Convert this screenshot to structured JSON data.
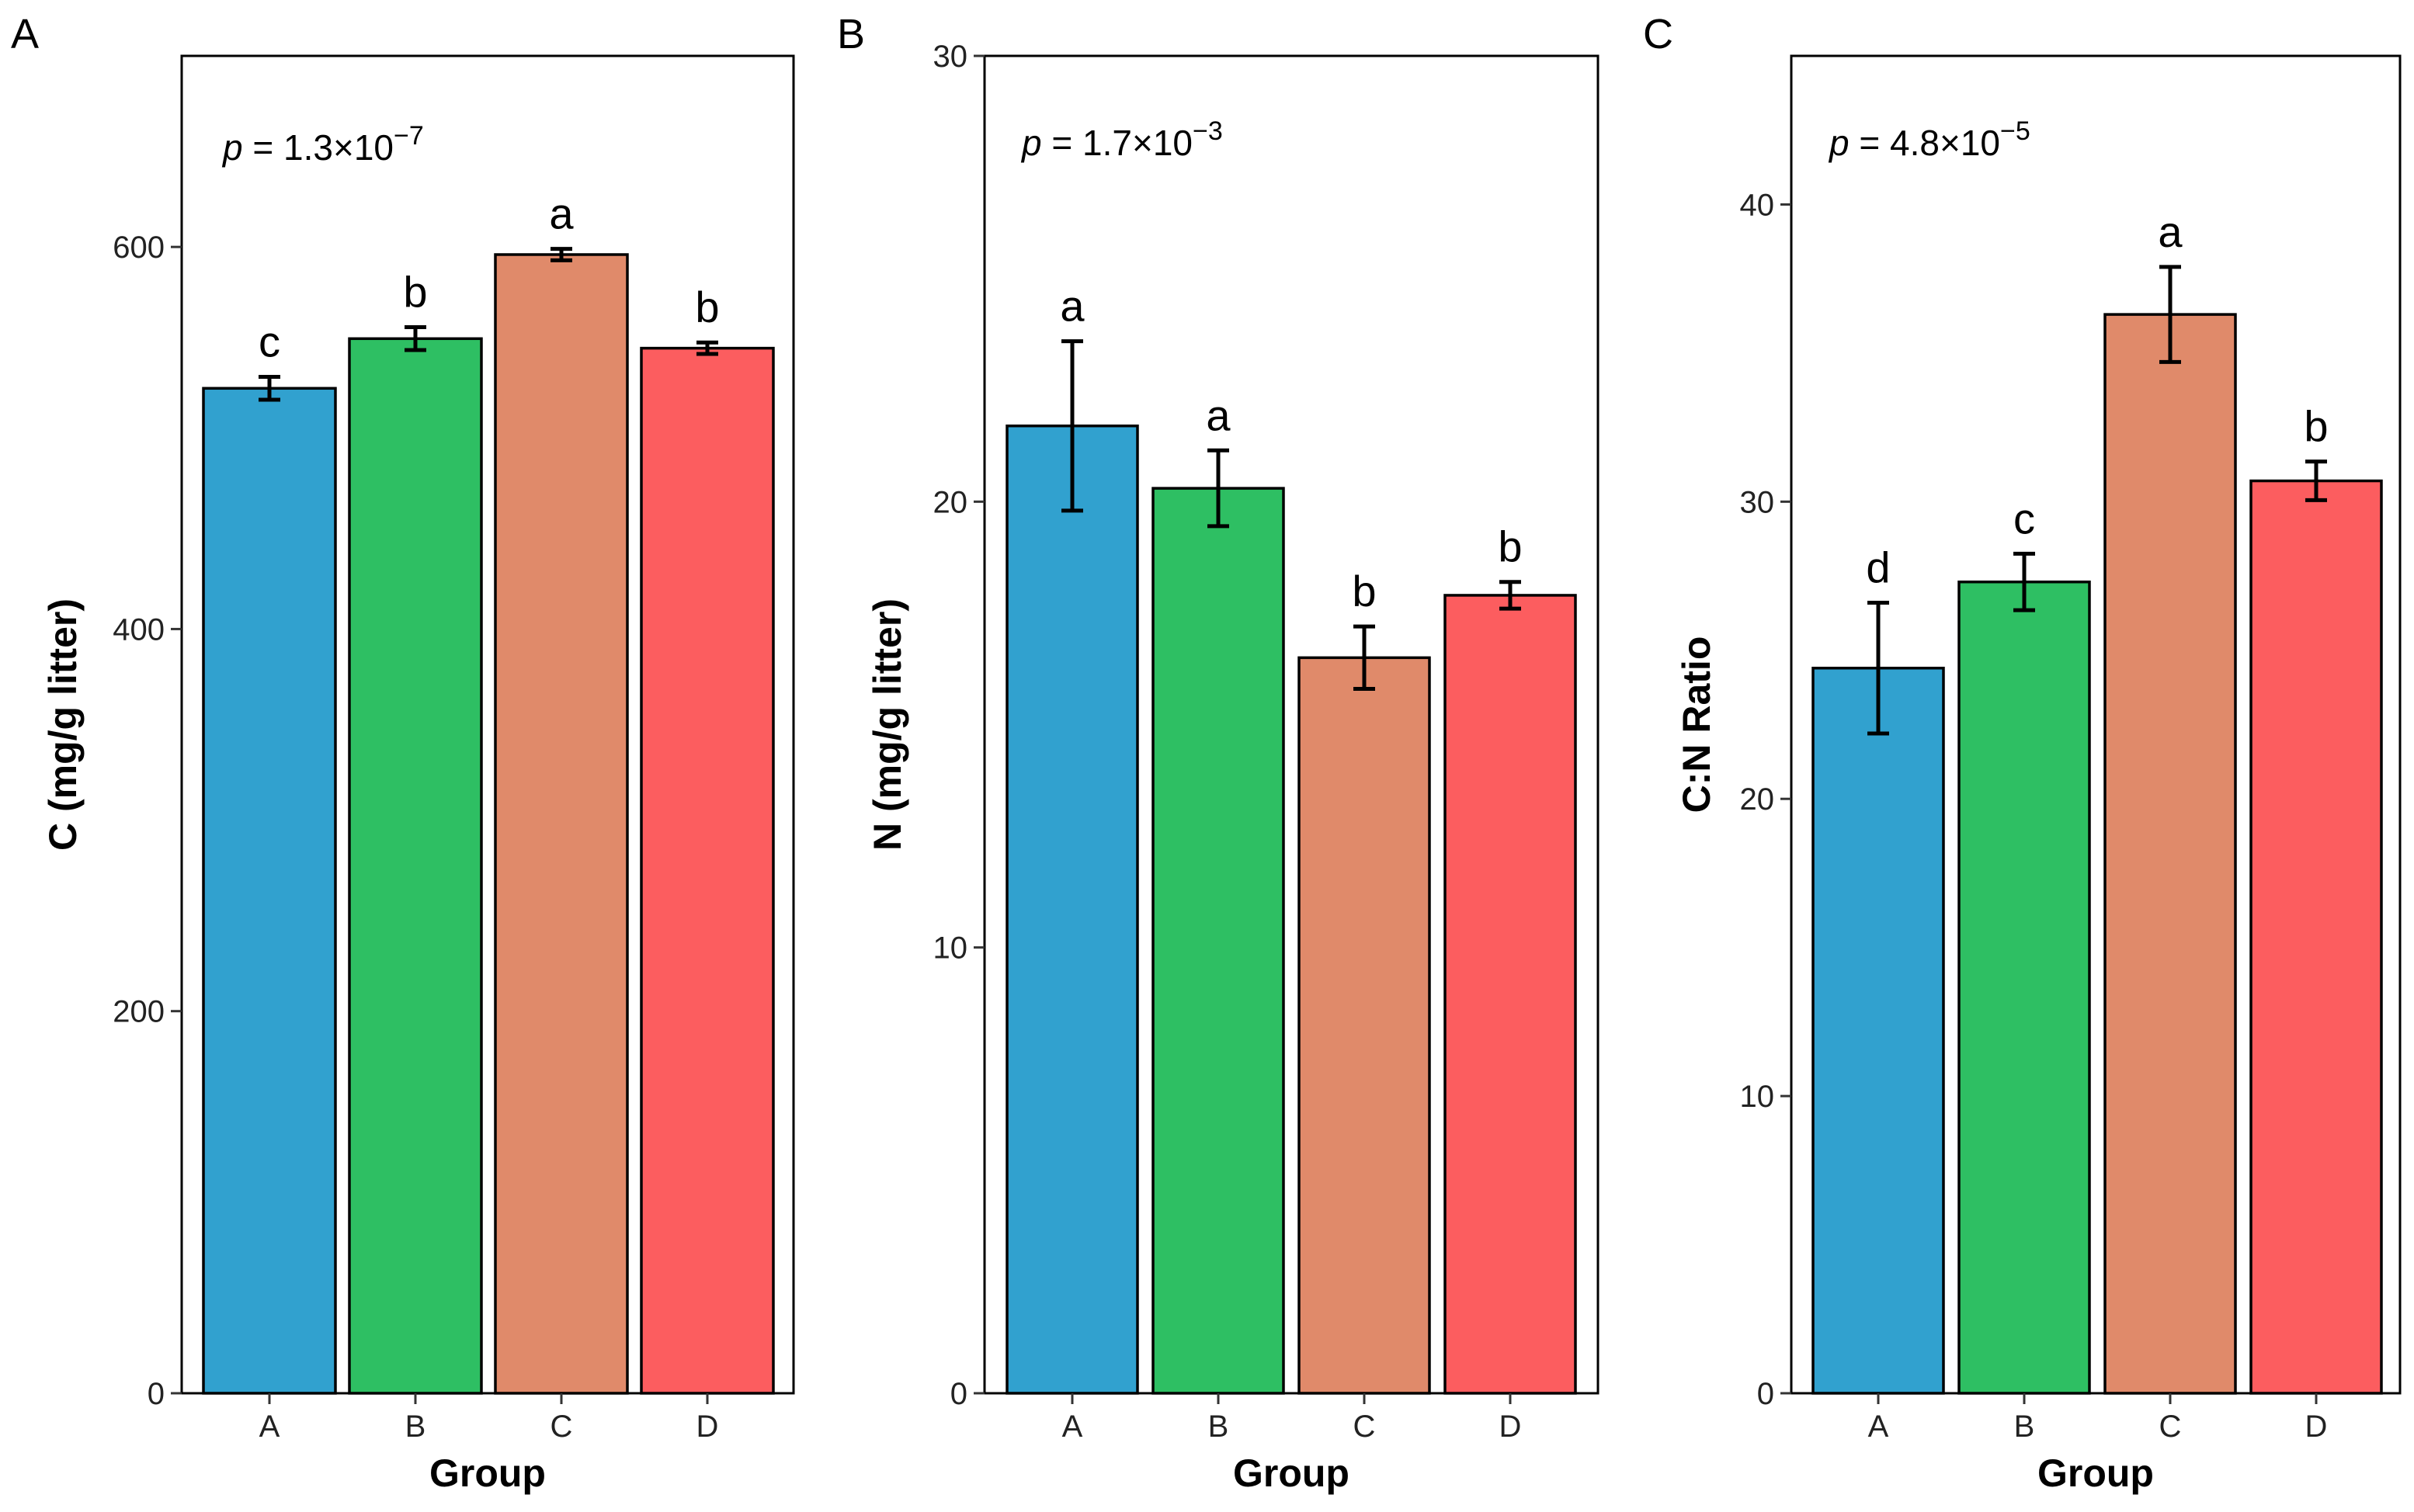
{
  "chart_data": [
    {
      "panel": "A",
      "type": "bar",
      "categories": [
        "A",
        "B",
        "C",
        "D"
      ],
      "values": [
        526,
        552,
        596,
        547
      ],
      "errors": [
        6,
        6,
        3,
        3
      ],
      "significance": [
        "c",
        "b",
        "a",
        "b"
      ],
      "p_value": {
        "prefix": "p",
        "text": " = 1.3×10",
        "exponent": "−7"
      },
      "xlabel": "Group",
      "ylabel": "C (mg/g litter)",
      "ylim": [
        0,
        700
      ],
      "yticks": [
        0,
        200,
        400,
        600
      ],
      "grid": false
    },
    {
      "panel": "B",
      "type": "bar",
      "categories": [
        "A",
        "B",
        "C",
        "D"
      ],
      "values": [
        21.7,
        20.3,
        16.5,
        17.9
      ],
      "errors": [
        1.9,
        0.85,
        0.7,
        0.3
      ],
      "significance": [
        "a",
        "a",
        "b",
        "b"
      ],
      "p_value": {
        "prefix": "p",
        "text": " = 1.7×10",
        "exponent": "−3"
      },
      "xlabel": "Group",
      "ylabel": "N (mg/g litter)",
      "ylim": [
        0,
        30
      ],
      "yticks": [
        0,
        10,
        20,
        30
      ],
      "grid": false
    },
    {
      "panel": "C",
      "type": "bar",
      "categories": [
        "A",
        "B",
        "C",
        "D"
      ],
      "values": [
        24.4,
        27.3,
        36.3,
        30.7
      ],
      "errors": [
        2.2,
        0.95,
        1.6,
        0.65
      ],
      "significance": [
        "d",
        "c",
        "a",
        "b"
      ],
      "p_value": {
        "prefix": "p",
        "text": " = 4.8×10",
        "exponent": "−5"
      },
      "xlabel": "Group",
      "ylabel": "C:N Ratio",
      "ylim": [
        0,
        45
      ],
      "yticks": [
        0,
        10,
        20,
        30,
        40
      ],
      "grid": false
    }
  ],
  "colors": {
    "A": "#31a1cf",
    "B": "#2ebf63",
    "C": "#e08a6a",
    "D": "#fc5d5f",
    "outline": "#000000"
  }
}
